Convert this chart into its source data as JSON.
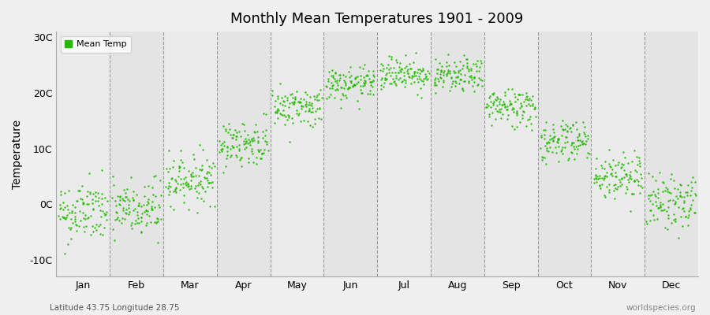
{
  "title": "Monthly Mean Temperatures 1901 - 2009",
  "ylabel": "Temperature",
  "xlabel_months": [
    "Jan",
    "Feb",
    "Mar",
    "Apr",
    "May",
    "Jun",
    "Jul",
    "Aug",
    "Sep",
    "Oct",
    "Nov",
    "Dec"
  ],
  "ytick_labels": [
    "-10C",
    "0C",
    "10C",
    "20C",
    "30C"
  ],
  "ytick_values": [
    -10,
    0,
    10,
    20,
    30
  ],
  "ylim": [
    -13,
    31
  ],
  "legend_label": "Mean Temp",
  "dot_color": "#22bb00",
  "bg_color": "#f0f0f0",
  "band_colors": [
    "#ebebeb",
    "#e4e4e4"
  ],
  "subtitle_left": "Latitude 43.75 Longitude 28.75",
  "subtitle_right": "worldspecies.org",
  "n_years": 109,
  "monthly_means": [
    -1.5,
    -1.0,
    4.5,
    11.0,
    17.5,
    21.5,
    23.5,
    23.0,
    17.5,
    11.5,
    5.0,
    0.5
  ],
  "monthly_stds": [
    2.8,
    2.8,
    2.2,
    2.0,
    1.8,
    1.5,
    1.5,
    1.5,
    1.8,
    2.0,
    2.2,
    2.5
  ],
  "seed": 42,
  "figsize": [
    9.0,
    4.0
  ],
  "dpi": 100
}
